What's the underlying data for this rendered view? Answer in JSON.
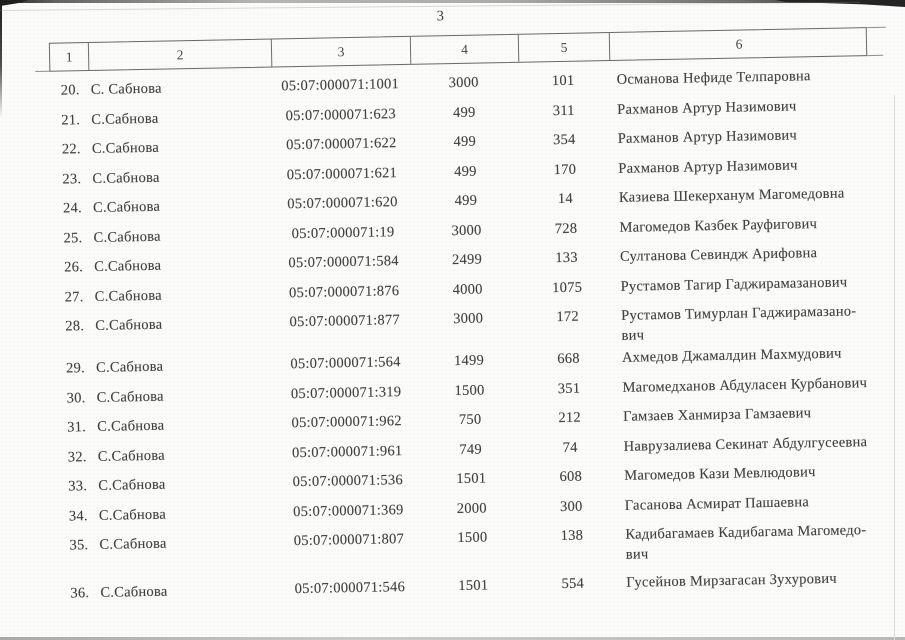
{
  "page": {
    "number": "3"
  },
  "table": {
    "columns": [
      "1",
      "2",
      "3",
      "4",
      "5",
      "6"
    ],
    "rows": [
      {
        "no": "20.",
        "settlement": "С. Сабнова",
        "cadastral": "05:07:000071:1001",
        "col4": "3000",
        "col5": "101",
        "name": "Османова Нефиде Телпаровна"
      },
      {
        "no": "21.",
        "settlement": "С.Сабнова",
        "cadastral": "05:07:000071:623",
        "col4": "499",
        "col5": "311",
        "name": "Рахманов Артур Назимович"
      },
      {
        "no": "22.",
        "settlement": "С.Сабнова",
        "cadastral": "05:07:000071:622",
        "col4": "499",
        "col5": "354",
        "name": "Рахманов Артур Назимович"
      },
      {
        "no": "23.",
        "settlement": "С.Сабнова",
        "cadastral": "05:07:000071:621",
        "col4": "499",
        "col5": "170",
        "name": "Рахманов Артур Назимович"
      },
      {
        "no": "24.",
        "settlement": "С.Сабнова",
        "cadastral": "05:07:000071:620",
        "col4": "499",
        "col5": "14",
        "name": "Казиева Шекерханум Магомедовна"
      },
      {
        "no": "25.",
        "settlement": "С.Сабнова",
        "cadastral": "05:07:000071:19",
        "col4": "3000",
        "col5": "728",
        "name": "Магомедов Казбек Рауфигович"
      },
      {
        "no": "26.",
        "settlement": "С.Сабнова",
        "cadastral": "05:07:000071:584",
        "col4": "2499",
        "col5": "133",
        "name": "Султанова Севиндж Арифовна"
      },
      {
        "no": "27.",
        "settlement": "С.Сабнова",
        "cadastral": "05:07:000071:876",
        "col4": "4000",
        "col5": "1075",
        "name": "Рустамов Тагир Гаджирамазанович"
      },
      {
        "no": "28.",
        "settlement": "С.Сабнова",
        "cadastral": "05:07:000071:877",
        "col4": "3000",
        "col5": "172",
        "name": "Рустамов Тимурлан Гаджирамазано-\nвич"
      },
      {
        "no": "29.",
        "settlement": "С.Сабнова",
        "cadastral": "05:07:000071:564",
        "col4": "1499",
        "col5": "668",
        "name": "Ахмедов Джамалдин Махмудович"
      },
      {
        "no": "30.",
        "settlement": "С.Сабнова",
        "cadastral": "05:07:000071:319",
        "col4": "1500",
        "col5": "351",
        "name": "Магомедханов Абдуласен Курбанович"
      },
      {
        "no": "31.",
        "settlement": "С.Сабнова",
        "cadastral": "05:07:000071:962",
        "col4": "750",
        "col5": "212",
        "name": "Гамзаев Ханмирза Гамзаевич"
      },
      {
        "no": "32.",
        "settlement": "С.Сабнова",
        "cadastral": "05:07:000071:961",
        "col4": "749",
        "col5": "74",
        "name": "Наврузалиева Секинат Абдулгусеевна"
      },
      {
        "no": "33.",
        "settlement": "С.Сабнова",
        "cadastral": "05:07:000071:536",
        "col4": "1501",
        "col5": "608",
        "name": "Магомедов Кази Мевлюдович"
      },
      {
        "no": "34.",
        "settlement": "С.Сабнова",
        "cadastral": "05:07:000071:369",
        "col4": "2000",
        "col5": "300",
        "name": "Гасанова Асмират Пашаевна"
      },
      {
        "no": "35.",
        "settlement": "С.Сабнова",
        "cadastral": "05:07:000071:807",
        "col4": "1500",
        "col5": "138",
        "name": "Кадибагамаев Кадибагама Магомедо-\nвич"
      },
      {
        "no": "36.",
        "settlement": "С.Сабнова",
        "cadastral": "05:07:000071:546",
        "col4": "1501",
        "col5": "554",
        "name": "Гусейнов Мирзагасан Зухурович"
      }
    ]
  },
  "colors": {
    "paper": "#fbfbf9",
    "ink": "#414141",
    "table_border": "#686868"
  }
}
